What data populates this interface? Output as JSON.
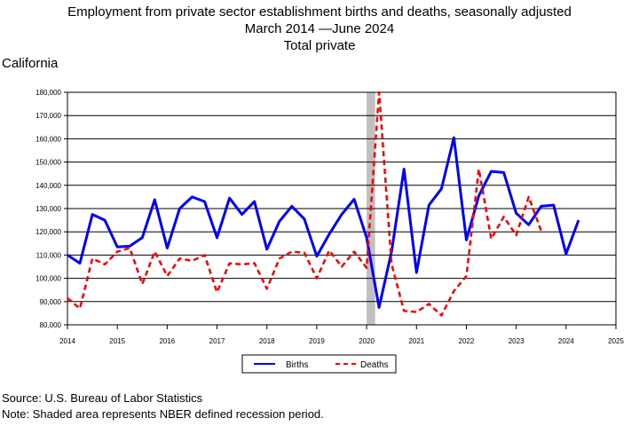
{
  "title": {
    "line1": "Employment from private sector establishment births and deaths, seasonally adjusted",
    "line2": "March 2014 —June 2024",
    "line3": "Total private"
  },
  "region": "California",
  "footer": {
    "source": "Source: U.S. Bureau of Labor Statistics",
    "note": "Note: Shaded area represents NBER defined recession period."
  },
  "colors": {
    "births": "#0000ff",
    "deaths": "#ff0000",
    "recession": "#c0c0c0"
  },
  "chart_data": {
    "type": "line",
    "grid": true,
    "legend_position": "bottom-center",
    "xlim": [
      2014,
      2025
    ],
    "ylim": [
      80000,
      180000
    ],
    "x_ticks": [
      "2014",
      "2015",
      "2016",
      "2017",
      "2018",
      "2019",
      "2020",
      "2021",
      "2022",
      "2023",
      "2024",
      "2025"
    ],
    "y_ticks": [
      "80,000",
      "90,000",
      "100,000",
      "110,000",
      "120,000",
      "130,000",
      "140,000",
      "150,000",
      "160,000",
      "170,000",
      "180,000"
    ],
    "recession": {
      "start": 2020.0,
      "end": 2020.17
    },
    "series": [
      {
        "name": "Births",
        "style": "solid",
        "x": [
          2014.0,
          2014.25,
          2014.5,
          2014.75,
          2015.0,
          2015.25,
          2015.5,
          2015.75,
          2016.0,
          2016.25,
          2016.5,
          2016.75,
          2017.0,
          2017.25,
          2017.5,
          2017.75,
          2018.0,
          2018.25,
          2018.5,
          2018.75,
          2019.0,
          2019.25,
          2019.5,
          2019.75,
          2020.0,
          2020.25,
          2020.5,
          2020.75,
          2021.0,
          2021.25,
          2021.5,
          2021.75,
          2022.0,
          2022.25,
          2022.5,
          2022.75,
          2023.0,
          2023.25,
          2023.5,
          2023.75,
          2024.0,
          2024.25
        ],
        "values": [
          110000,
          106500,
          127500,
          125000,
          113500,
          113800,
          117500,
          133800,
          113000,
          130000,
          135000,
          133000,
          117500,
          134500,
          127500,
          133000,
          112500,
          124500,
          131000,
          125500,
          109500,
          119000,
          127500,
          134000,
          117500,
          87500,
          111500,
          147000,
          102500,
          131500,
          138500,
          160500,
          116500,
          135500,
          146000,
          145500,
          128000,
          123000,
          131000,
          131500,
          110500,
          125000
        ]
      },
      {
        "name": "Deaths",
        "style": "dashed",
        "x": [
          2014.0,
          2014.25,
          2014.5,
          2014.75,
          2015.0,
          2015.25,
          2015.5,
          2015.75,
          2016.0,
          2016.25,
          2016.5,
          2016.75,
          2017.0,
          2017.25,
          2017.5,
          2017.75,
          2018.0,
          2018.25,
          2018.5,
          2018.75,
          2019.0,
          2019.25,
          2019.5,
          2019.75,
          2020.0,
          2020.25,
          2020.5,
          2020.75,
          2021.0,
          2021.25,
          2021.5,
          2021.75,
          2022.0,
          2022.25,
          2022.5,
          2022.75,
          2023.0,
          2023.25,
          2023.5
        ],
        "values": [
          91500,
          87000,
          108500,
          106000,
          111500,
          113000,
          97500,
          111500,
          101000,
          108500,
          107500,
          110000,
          94000,
          106500,
          106000,
          106500,
          95500,
          108500,
          111500,
          111000,
          100000,
          112000,
          105000,
          111500,
          104500,
          180000,
          106000,
          86000,
          85500,
          89000,
          84000,
          94500,
          101000,
          147000,
          117000,
          126500,
          118500,
          135000,
          120500
        ]
      }
    ]
  }
}
